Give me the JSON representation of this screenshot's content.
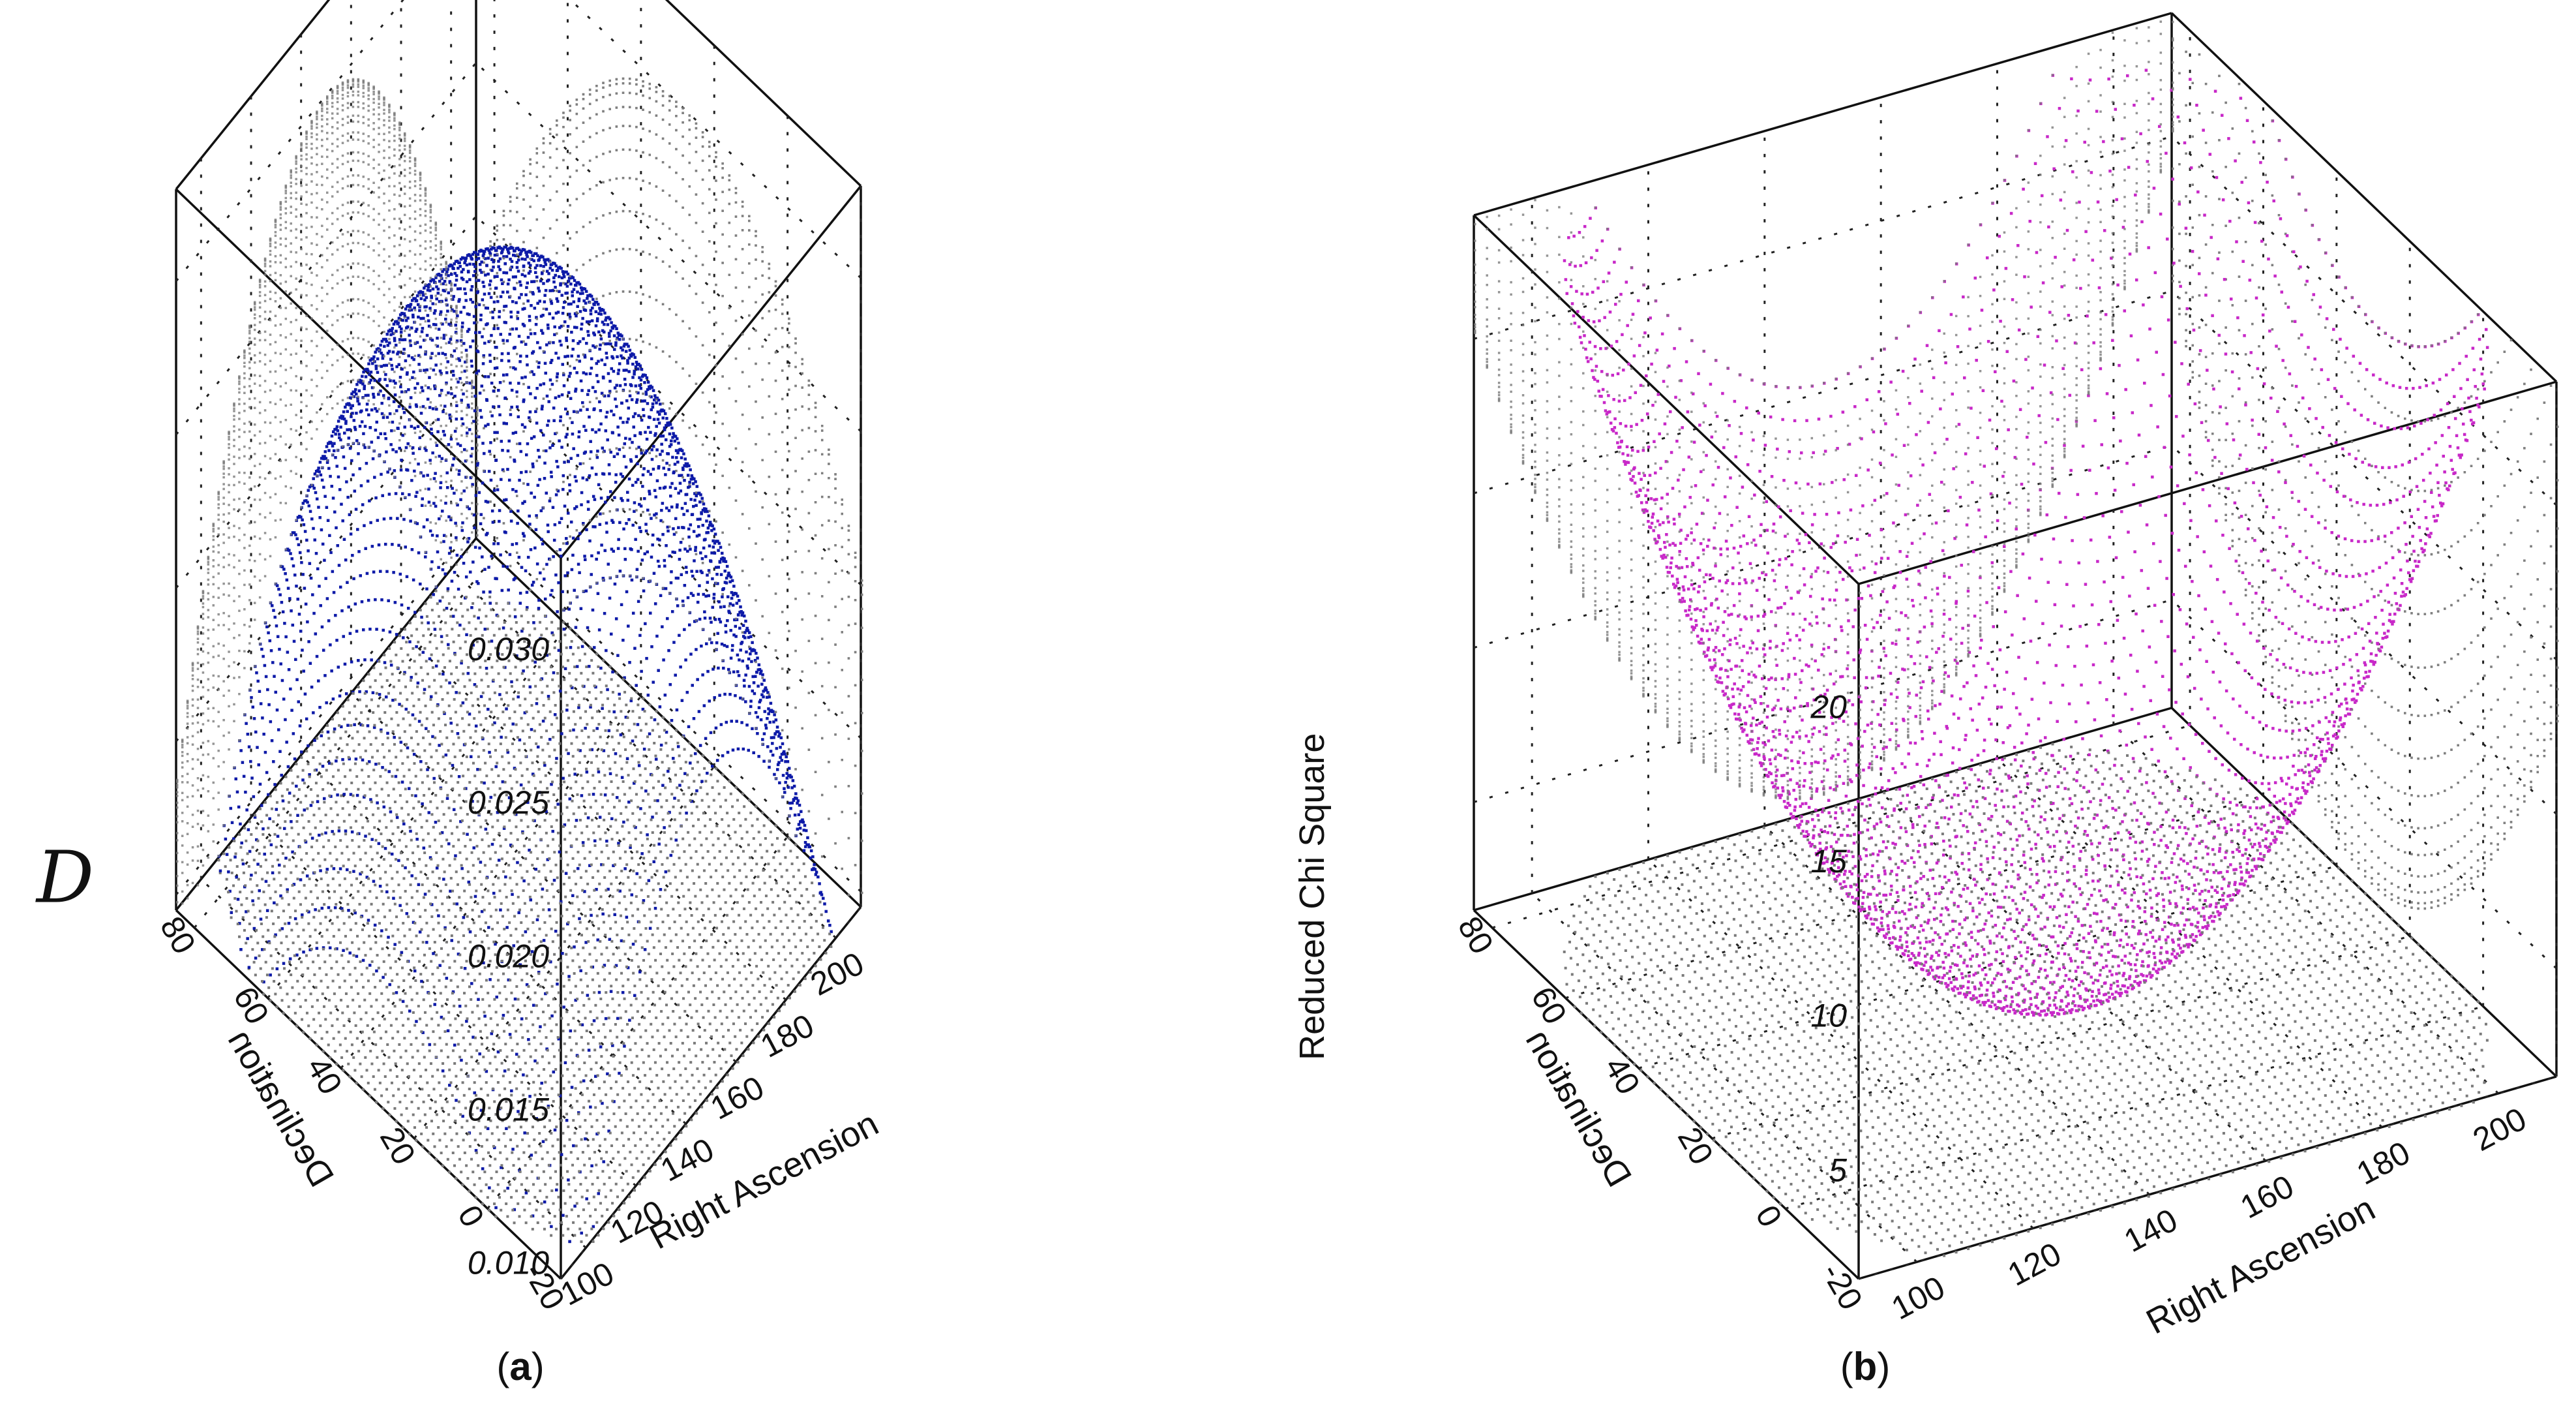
{
  "chart_data": [
    {
      "id": "a",
      "type": "scatter",
      "caption_open": "(",
      "caption_letter": "a",
      "caption_close": ")",
      "zlabel_symbol": "D",
      "xlabel": "Right Ascension",
      "ylabel": "Declination",
      "x_ticks": [
        "100",
        "120",
        "140",
        "160",
        "180",
        "200"
      ],
      "x_range": [
        90,
        210
      ],
      "y_ticks": [
        "-20",
        "0",
        "20",
        "40",
        "60",
        "80"
      ],
      "y_range": [
        -20,
        85
      ],
      "z_ticks": [
        "0.010",
        "0.015",
        "0.020",
        "0.025",
        "0.030"
      ],
      "z_range": [
        0.0095,
        0.033
      ],
      "surface_color": "#0d1aa8",
      "projection_color": "#7a7a7a",
      "surface_model": {
        "center_x": 150,
        "center_y": 30,
        "peak_z": 0.03,
        "curvature": 1.0,
        "shape": "dome"
      }
    },
    {
      "id": "b",
      "type": "scatter",
      "caption_open": "(",
      "caption_letter": "b",
      "caption_close": ")",
      "zlabel": "Reduced Chi Square",
      "xlabel": "Right Ascension",
      "ylabel": "Declination",
      "x_ticks": [
        "100",
        "120",
        "140",
        "160",
        "180",
        "200"
      ],
      "x_range": [
        90,
        210
      ],
      "y_ticks": [
        "-20",
        "0",
        "20",
        "40",
        "60",
        "80"
      ],
      "y_range": [
        -20,
        85
      ],
      "z_ticks": [
        "5",
        "10",
        "15",
        "20"
      ],
      "z_range": [
        1.5,
        24
      ],
      "surface_color": "#c828c8",
      "projection_color": "#7a7a7a",
      "surface_model": {
        "center_x": 150,
        "center_y": 30,
        "min_z": 2,
        "curvature": 1.0,
        "shape": "bowl"
      }
    }
  ]
}
